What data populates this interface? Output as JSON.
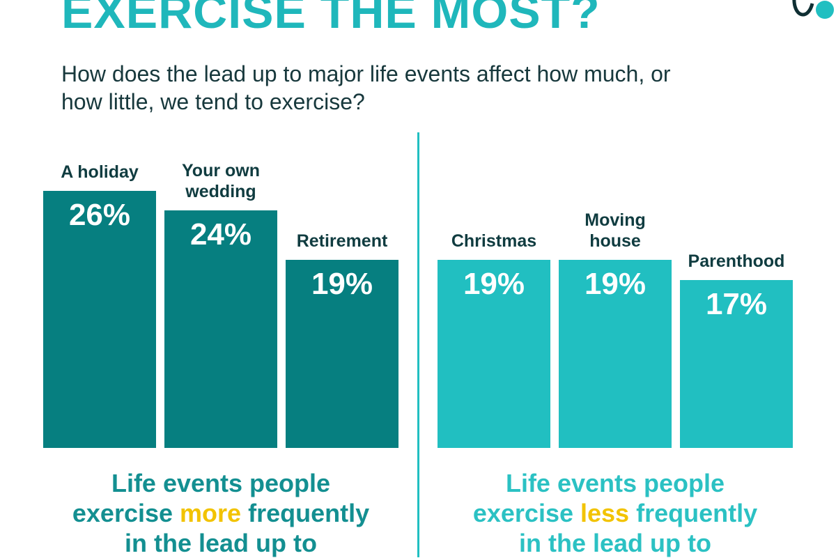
{
  "title": "EXERCISE THE MOST?",
  "subtitle": "How does the lead up to major life events affect how much, or how little, we tend to exercise?",
  "chart_data": [
    {
      "type": "bar",
      "categories": [
        "A holiday",
        "Your own wedding",
        "Retirement"
      ],
      "values": [
        26,
        24,
        19
      ],
      "value_labels": [
        "26%",
        "24%",
        "19%"
      ],
      "color": "#067f80",
      "caption": {
        "line1": "Life events people",
        "before": "exercise",
        "highlight": "more",
        "after": "frequently",
        "line3": "in the lead up to"
      },
      "caption_color": "#138f91"
    },
    {
      "type": "bar",
      "categories": [
        "Christmas",
        "Moving house",
        "Parenthood"
      ],
      "values": [
        19,
        19,
        17
      ],
      "value_labels": [
        "19%",
        "19%",
        "17%"
      ],
      "color": "#21bfc1",
      "caption": {
        "line1": "Life events people",
        "before": "exercise",
        "highlight": "less",
        "after": "frequently",
        "line3": "in the lead up to"
      },
      "caption_color": "#2bc1c3"
    }
  ]
}
